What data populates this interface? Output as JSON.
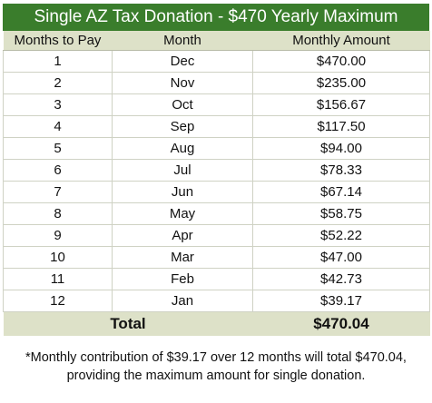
{
  "title": "Single AZ Tax Donation - $470 Yearly Maximum",
  "table": {
    "headers": [
      "Months to Pay",
      "Month",
      "Monthly Amount"
    ],
    "rows": [
      [
        "1",
        "Dec",
        "$470.00"
      ],
      [
        "2",
        "Nov",
        "$235.00"
      ],
      [
        "3",
        "Oct",
        "$156.67"
      ],
      [
        "4",
        "Sep",
        "$117.50"
      ],
      [
        "5",
        "Aug",
        "$94.00"
      ],
      [
        "6",
        "Jul",
        "$78.33"
      ],
      [
        "7",
        "Jun",
        "$67.14"
      ],
      [
        "8",
        "May",
        "$58.75"
      ],
      [
        "9",
        "Apr",
        "$52.22"
      ],
      [
        "10",
        "Mar",
        "$47.00"
      ],
      [
        "11",
        "Feb",
        "$42.73"
      ],
      [
        "12",
        "Jan",
        "$39.17"
      ]
    ],
    "total_label": "Total",
    "total_value": "$470.04"
  },
  "footnote": {
    "line1": "*Monthly contribution of $39.17 over 12 months will total $470.04,",
    "line2": "providing the maximum amount for single donation."
  },
  "colors": {
    "title_bg": "#3a7d2c",
    "header_bg": "#dde1c8"
  }
}
